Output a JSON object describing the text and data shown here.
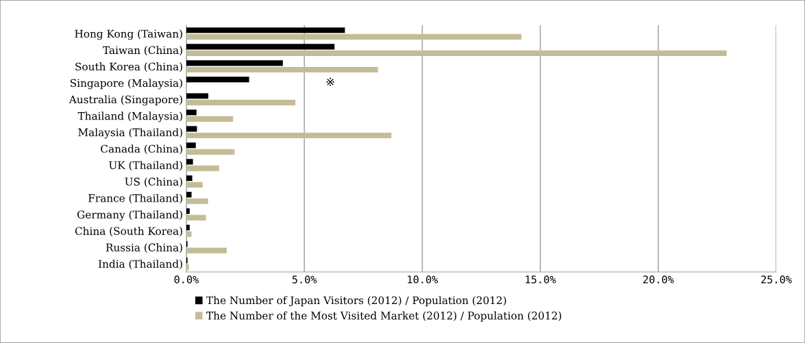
{
  "chart_data": {
    "type": "bar",
    "orientation": "horizontal",
    "categories": [
      "Hong Kong (Taiwan)",
      "Taiwan (China)",
      "South Korea (China)",
      "Singapore (Malaysia)",
      "Australia (Singapore)",
      "Thailand (Malaysia)",
      "Malaysia (Thailand)",
      "Canada (China)",
      "UK (Thailand)",
      "US (China)",
      "France (Thailand)",
      "Germany (Thailand)",
      "China (South Korea)",
      "Russia (China)",
      "India (Thailand)"
    ],
    "series": [
      {
        "name": "The Number of Japan Visitors (2012) / Population (2012)",
        "color": "#000000",
        "values": [
          6.72,
          6.28,
          4.09,
          2.66,
          0.93,
          0.43,
          0.45,
          0.4,
          0.28,
          0.25,
          0.22,
          0.14,
          0.14,
          0.05,
          0.05
        ]
      },
      {
        "name": "The Number of the Most Visited Market (2012) / Population (2012)",
        "color": "#c4bc96",
        "values": [
          14.2,
          22.9,
          8.12,
          null,
          4.62,
          1.98,
          8.69,
          2.04,
          1.39,
          0.69,
          0.92,
          0.83,
          0.22,
          1.71,
          0.11
        ]
      }
    ],
    "xlim": [
      0,
      25
    ],
    "xticks": [
      {
        "value": 0,
        "label": "0.0%"
      },
      {
        "value": 5,
        "label": "5.0%"
      },
      {
        "value": 10,
        "label": "10.0%"
      },
      {
        "value": 15,
        "label": "15.0%"
      },
      {
        "value": 20,
        "label": "20.0%"
      },
      {
        "value": 25,
        "label": "25.0%"
      }
    ],
    "grid": "x",
    "legend": "bottom",
    "annotations": [
      "※"
    ]
  }
}
